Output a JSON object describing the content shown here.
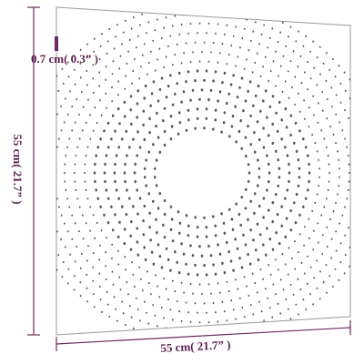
{
  "thickness_label": "0.7 cm( 0.3” )",
  "height_label": "55 cm( 21.7” )",
  "width_label": "55 cm( 21.7” )"
}
